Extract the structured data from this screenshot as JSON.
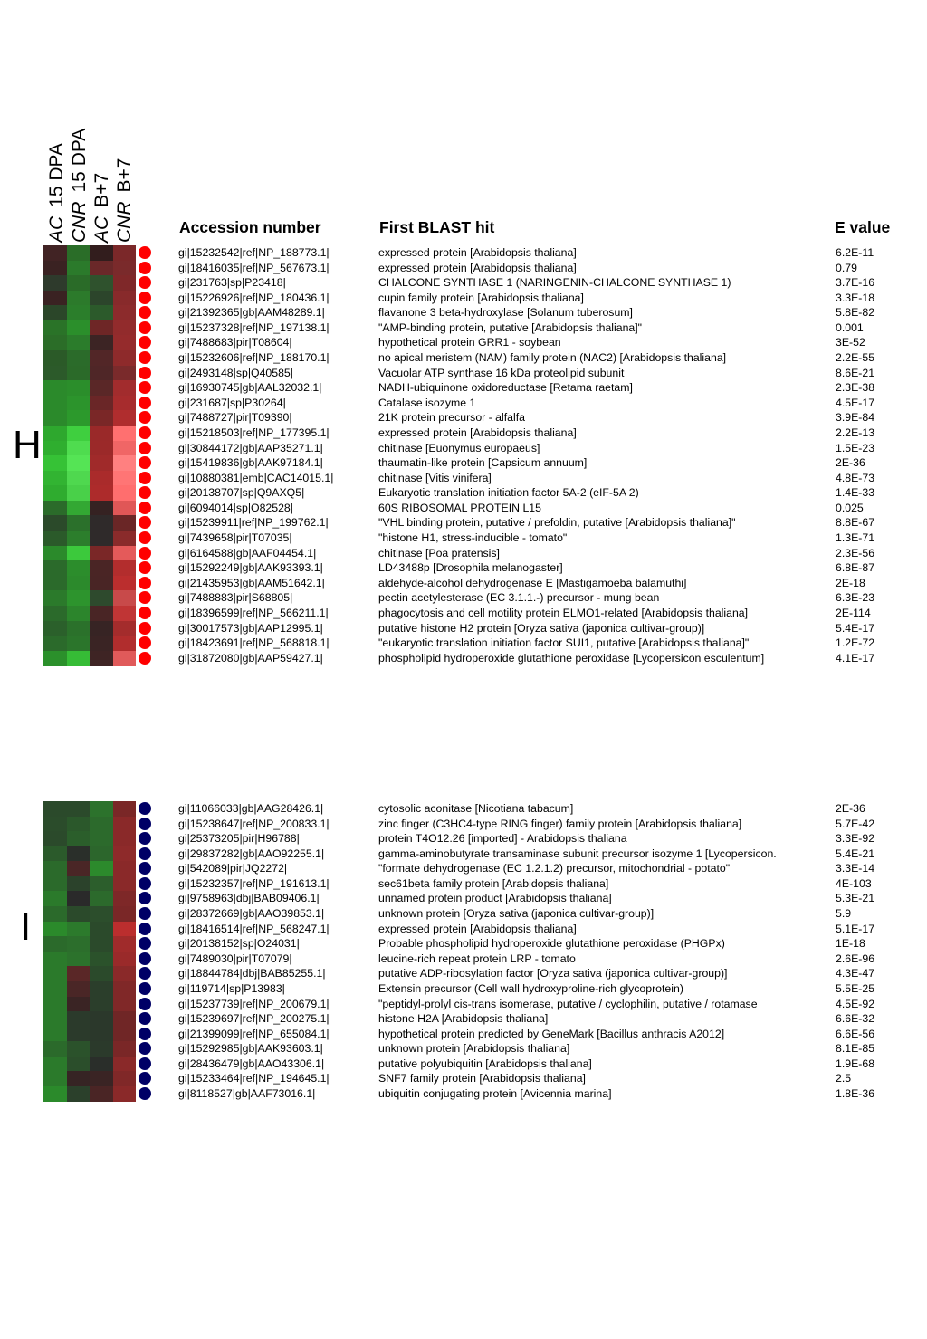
{
  "columns": [
    {
      "condition": "AC",
      "stage": "15 DPA"
    },
    {
      "condition": "CNR",
      "stage": "15 DPA"
    },
    {
      "condition": "AC",
      "stage": "B+7"
    },
    {
      "condition": "CNR",
      "stage": "B+7"
    }
  ],
  "headers": {
    "accession": "Accession number",
    "blast": "First BLAST hit",
    "evalue": "E value"
  },
  "colors": {
    "cluster_H_marker": "#ff0000",
    "cluster_I_marker": "#000066"
  },
  "chart_data": {
    "type": "heatmap",
    "color_scale": "green (low) - black - red (high)",
    "clusters": [
      {
        "label": "H",
        "marker_color": "#ff0000",
        "rows": [
          {
            "accession": "gi|15232542|ref|NP_188773.1|",
            "blast": "expressed protein [Arabidopsis thaliana]",
            "evalue": "6.2E-11",
            "colors": [
              "#412324",
              "#2a6d28",
              "#321d1d",
              "#7b2829"
            ]
          },
          {
            "accession": "gi|18416035|ref|NP_567673.1|",
            "blast": "expressed protein [Arabidopsis thaliana]",
            "evalue": "0.79",
            "colors": [
              "#3a2222",
              "#2b7a2b",
              "#6a2829",
              "#7a2a2b"
            ]
          },
          {
            "accession": "gi|231763|sp|P23418|",
            "blast": "CHALCONE SYNTHASE 1 (NARINGENIN-CHALCONE SYNTHASE 1)",
            "evalue": "3.7E-16",
            "colors": [
              "#2e3a2c",
              "#2a6b28",
              "#2f522d",
              "#7f2829"
            ]
          },
          {
            "accession": "gi|15226926|ref|NP_180436.1|",
            "blast": "cupin family protein [Arabidopsis thaliana]",
            "evalue": "3.3E-18",
            "colors": [
              "#3a2222",
              "#2c7a2b",
              "#2c452b",
              "#882a2b"
            ]
          },
          {
            "accession": "gi|21392365|gb|AAM48289.1|",
            "blast": "flavanone 3 beta-hydroxylase [Solanum tuberosum]",
            "evalue": "5.8E-82",
            "colors": [
              "#2b4629",
              "#2b7e2b",
              "#2c5a2b",
              "#8c2b2c"
            ]
          },
          {
            "accession": "gi|15237328|ref|NP_197138.1|",
            "blast": "\"AMP-binding protein, putative [Arabidopsis thaliana]\"",
            "evalue": "0.001",
            "colors": [
              "#2a7328",
              "#2b8f2b",
              "#6e2626",
              "#922b2c"
            ]
          },
          {
            "accession": "gi|7488683|pir|T08604|",
            "blast": "hypothetical protein GRR1 - soybean",
            "evalue": "3E-52",
            "colors": [
              "#2b6d28",
              "#2b7c2b",
              "#3c2424",
              "#952b2c"
            ]
          },
          {
            "accession": "gi|15232606|ref|NP_188170.1|",
            "blast": "no apical meristem (NAM) family protein (NAC2) [Arabidopsis thaliana]",
            "evalue": "2.2E-55",
            "colors": [
              "#2b5a28",
              "#2b6b2a",
              "#522627",
              "#8e2a2b"
            ]
          },
          {
            "accession": "gi|2493148|sp|Q40585|",
            "blast": "Vacuolar ATP synthase 16 kDa proteolipid subunit",
            "evalue": "8.6E-21",
            "colors": [
              "#2c5a2a",
              "#2b6a29",
              "#4f2627",
              "#7a2a2b"
            ]
          },
          {
            "accession": "gi|16930745|gb|AAL32032.1|",
            "blast": "NADH-ubiquinone oxidoreductase [Retama raetam]",
            "evalue": "2.3E-38",
            "colors": [
              "#2b8a2b",
              "#2b8e2b",
              "#5a2727",
              "#a22c2d"
            ]
          },
          {
            "accession": "gi|231687|sp|P30264|",
            "blast": "Catalase isozyme 1",
            "evalue": "4.5E-17",
            "colors": [
              "#2b8a2b",
              "#2c942c",
              "#6a2627",
              "#a72c2d"
            ]
          },
          {
            "accession": "gi|7488727|pir|T09390|",
            "blast": "21K protein precursor - alfalfa",
            "evalue": "3.9E-84",
            "colors": [
              "#2b8a2b",
              "#2c992c",
              "#7a2727",
              "#b02d2e"
            ]
          },
          {
            "accession": "gi|15218503|ref|NP_177395.1|",
            "blast": "expressed protein [Arabidopsis thaliana]",
            "evalue": "2.2E-13",
            "colors": [
              "#2ea82e",
              "#3fcf3f",
              "#9a2929",
              "#ff7070"
            ]
          },
          {
            "accession": "gi|30844172|gb|AAP35271.1|",
            "blast": "chitinase [Euonymus europaeus]",
            "evalue": "1.5E-23",
            "colors": [
              "#2fae2f",
              "#4fdc4f",
              "#9b2929",
              "#f06666"
            ]
          },
          {
            "accession": "gi|15419836|gb|AAK97184.1|",
            "blast": "thaumatin-like protein [Capsicum annuum]",
            "evalue": "2E-36",
            "colors": [
              "#36c236",
              "#55e455",
              "#a02a2a",
              "#ff8080"
            ]
          },
          {
            "accession": "gi|10880381|emb|CAC14015.1|",
            "blast": "chitinase [Vitis vinifera]",
            "evalue": "4.8E-73",
            "colors": [
              "#32b432",
              "#4fd84f",
              "#aa2b2b",
              "#ff7575"
            ]
          },
          {
            "accession": "gi|20138707|sp|Q9AXQ5|",
            "blast": "Eukaryotic translation initiation factor 5A-2 (eIF-5A 2)",
            "evalue": "1.4E-33",
            "colors": [
              "#2fac2f",
              "#49d049",
              "#ad2b2b",
              "#ff6e6e"
            ]
          },
          {
            "accession": "gi|6094014|sp|O82528|",
            "blast": "60S RIBOSOMAL PROTEIN L15",
            "evalue": "0.025",
            "colors": [
              "#2b6b2a",
              "#33a833",
              "#352222",
              "#e05757"
            ]
          },
          {
            "accession": "gi|15239911|ref|NP_199762.1|",
            "blast": "\"VHL binding protein, putative / prefoldin, putative [Arabidopsis thaliana]\"",
            "evalue": "8.8E-67",
            "colors": [
              "#2b4a2a",
              "#2b702b",
              "#2f2a2a",
              "#6a2626"
            ]
          },
          {
            "accession": "gi|7439658|pir|T07035|",
            "blast": "\"histone H1, stress-inducible - tomato\"",
            "evalue": "1.3E-71",
            "colors": [
              "#2b5a2a",
              "#2c7e2c",
              "#2f2a2a",
              "#8a2b2b"
            ]
          },
          {
            "accession": "gi|6164588|gb|AAF04454.1|",
            "blast": "chitinase [Poa pratensis]",
            "evalue": "2.3E-56",
            "colors": [
              "#2b8a2b",
              "#3cc93c",
              "#7a2727",
              "#e45a5a"
            ]
          },
          {
            "accession": "gi|15292249|gb|AAK93393.1|",
            "blast": "LD43488p [Drosophila melanogaster]",
            "evalue": "6.8E-87",
            "colors": [
              "#2b6a2b",
              "#2c8d2c",
              "#4a2525",
              "#b32d2d"
            ]
          },
          {
            "accession": "gi|21435953|gb|AAM51642.1|",
            "blast": "aldehyde-alcohol dehydrogenase E [Mastigamoeba balamuthi]",
            "evalue": "2E-18",
            "colors": [
              "#2b6a2b",
              "#2c8a2c",
              "#492525",
              "#bb2e2e"
            ]
          },
          {
            "accession": "gi|7488883|pir|S68805|",
            "blast": "pectin acetylesterase (EC 3.1.1.-) precursor - mung bean",
            "evalue": "6.3E-23",
            "colors": [
              "#2b7a2b",
              "#2d942d",
              "#2e4a2d",
              "#c84a4a"
            ]
          },
          {
            "accession": "gi|18396599|ref|NP_566211.1|",
            "blast": "phagocytosis and cell motility protein ELMO1-related [Arabidopsis thaliana]",
            "evalue": "2E-114",
            "colors": [
              "#2b6a2b",
              "#2c852c",
              "#492525",
              "#c03535"
            ]
          },
          {
            "accession": "gi|30017573|gb|AAP12995.1|",
            "blast": "putative histone H2 protein [Oryza sativa (japonica cultivar-group)]",
            "evalue": "5.4E-17",
            "colors": [
              "#2b602b",
              "#2b712b",
              "#372424",
              "#a42c2c"
            ]
          },
          {
            "accession": "gi|18423691|ref|NP_568818.1|",
            "blast": "\"eukaryotic translation initiation factor SUI1, putative [Arabidopsis thaliana]\"",
            "evalue": "1.2E-72",
            "colors": [
              "#2b6a2b",
              "#2b752b",
              "#3a2424",
              "#b12d2d"
            ]
          },
          {
            "accession": "gi|31872080|gb|AAP59427.1|",
            "blast": "phospholipid hydroperoxide glutathione peroxidase [Lycopersicon esculentum]",
            "evalue": "4.1E-17",
            "colors": [
              "#2b902b",
              "#36bc36",
              "#3e2424",
              "#e05a5a"
            ]
          }
        ]
      },
      {
        "label": "I",
        "marker_color": "#000066",
        "rows": [
          {
            "accession": "gi|11066033|gb|AAG28426.1|",
            "blast": "cytosolic aconitase [Nicotiana tabacum]",
            "evalue": "2E-36",
            "colors": [
              "#2b4a2b",
              "#2b4a2b",
              "#2c722c",
              "#7a2727"
            ]
          },
          {
            "accession": "gi|15238647|ref|NP_200833.1|",
            "blast": "zinc finger (C3HC4-type RING finger) family protein [Arabidopsis thaliana]",
            "evalue": "5.7E-42",
            "colors": [
              "#2b4c2b",
              "#2b582b",
              "#2c6a2c",
              "#8a2929"
            ]
          },
          {
            "accession": "gi|25373205|pir|H96788|",
            "blast": "protein T4O12.26 [imported] - Arabidopsis thaliana",
            "evalue": "3.3E-92",
            "colors": [
              "#2b4a2b",
              "#2b5e2b",
              "#2c6a2c",
              "#8a2929"
            ]
          },
          {
            "accession": "gi|29837282|gb|AAO92255.1|",
            "blast": "gamma-aminobutyrate transaminase subunit precursor isozyme 1 [Lycopersicon.",
            "evalue": "5.4E-21",
            "colors": [
              "#2b5a2b",
              "#2a2f2a",
              "#2c662c",
              "#8e2a2a"
            ]
          },
          {
            "accession": "gi|542089|pir|JQ2272|",
            "blast": "\"formate dehydrogenase (EC 1.2.1.2) precursor, mitochondrial - potato\"",
            "evalue": "3.3E-14",
            "colors": [
              "#2b6a2b",
              "#4a2626",
              "#2c8a2c",
              "#8a2929"
            ]
          },
          {
            "accession": "gi|15232357|ref|NP_191613.1|",
            "blast": "sec61beta family protein [Arabidopsis thaliana]",
            "evalue": "4E-103",
            "colors": [
              "#2b6a2b",
              "#2b422b",
              "#2c5e2c",
              "#8a2929"
            ]
          },
          {
            "accession": "gi|9758963|dbj|BAB09406.1|",
            "blast": "unnamed protein product [Arabidopsis thaliana]",
            "evalue": "5.3E-21",
            "colors": [
              "#2b7a2b",
              "#2a2a2a",
              "#2c6a2c",
              "#7e2828"
            ]
          },
          {
            "accession": "gi|28372669|gb|AAO39853.1|",
            "blast": "unknown protein [Oryza sativa (japonica cultivar-group)]",
            "evalue": "5.9",
            "colors": [
              "#2b6a2b",
              "#2b4a2b",
              "#2c4e2c",
              "#7a2727"
            ]
          },
          {
            "accession": "gi|18416514|ref|NP_568247.1|",
            "blast": "expressed protein [Arabidopsis thaliana]",
            "evalue": "5.1E-17",
            "colors": [
              "#2b8a2b",
              "#2c7a2c",
              "#2b4a2b",
              "#bb2e2e"
            ]
          },
          {
            "accession": "gi|20138152|sp|O24031|",
            "blast": "Probable phospholipid hydroperoxide glutathione peroxidase (PHGPx)",
            "evalue": "1E-18",
            "colors": [
              "#2b6a2b",
              "#2c6e2c",
              "#2b4a2b",
              "#a02b2b"
            ]
          },
          {
            "accession": "gi|7489030|pir|T07079|",
            "blast": "leucine-rich repeat protein LRP - tomato",
            "evalue": "2.6E-96",
            "colors": [
              "#2b7a2b",
              "#2c722c",
              "#2b522b",
              "#9a2a2a"
            ]
          },
          {
            "accession": "gi|18844784|dbj|BAB85255.1|",
            "blast": "putative ADP-ribosylation factor [Oryza sativa (japonica cultivar-group)]",
            "evalue": "4.3E-47",
            "colors": [
              "#2b7a2b",
              "#5a2727",
              "#2b4a2b",
              "#8a2929"
            ]
          },
          {
            "accession": "gi|119714|sp|P13983|",
            "blast": "Extensin precursor (Cell wall hydroxyproline-rich glycoprotein)",
            "evalue": "5.5E-25",
            "colors": [
              "#2b7a2b",
              "#4a2626",
              "#2b3e2b",
              "#802828"
            ]
          },
          {
            "accession": "gi|15237739|ref|NP_200679.1|",
            "blast": "\"peptidyl-prolyl cis-trans isomerase, putative / cyclophilin, putative / rotamase",
            "evalue": "4.5E-92",
            "colors": [
              "#2b7a2b",
              "#3a2424",
              "#2b3e2b",
              "#802828"
            ]
          },
          {
            "accession": "gi|15239697|ref|NP_200275.1|",
            "blast": "histone H2A [Arabidopsis thaliana]",
            "evalue": "6.6E-32",
            "colors": [
              "#2b7a2b",
              "#2b3a2b",
              "#2b382b",
              "#702626"
            ]
          },
          {
            "accession": "gi|21399099|ref|NP_655084.1|",
            "blast": "hypothetical protein predicted by GeneMark [Bacillus anthracis A2012]",
            "evalue": "6.6E-56",
            "colors": [
              "#2b7a2b",
              "#2b3a2b",
              "#2b382b",
              "#702626"
            ]
          },
          {
            "accession": "gi|15292985|gb|AAK93603.1|",
            "blast": "unknown protein [Arabidopsis thaliana]",
            "evalue": "8.1E-85",
            "colors": [
              "#2b6a2b",
              "#2b522b",
              "#2b3a2b",
              "#7a2727"
            ]
          },
          {
            "accession": "gi|28436479|gb|AAO43306.1|",
            "blast": "putative polyubiquitin [Arabidopsis thaliana]",
            "evalue": "1.9E-68",
            "colors": [
              "#2b7a2b",
              "#2b4e2b",
              "#2a2e2a",
              "#8a2929"
            ]
          },
          {
            "accession": "gi|15233464|ref|NP_194645.1|",
            "blast": "SNF7 family protein [Arabidopsis thaliana]",
            "evalue": "2.5",
            "colors": [
              "#2b7a2b",
              "#362424",
              "#3a2424",
              "#802828"
            ]
          },
          {
            "accession": "gi|8118527|gb|AAF73016.1|",
            "blast": "ubiquitin conjugating protein [Avicennia marina]",
            "evalue": "1.8E-36",
            "colors": [
              "#2b8a2b",
              "#2b402b",
              "#4a2525",
              "#8a2929"
            ]
          }
        ]
      }
    ]
  }
}
